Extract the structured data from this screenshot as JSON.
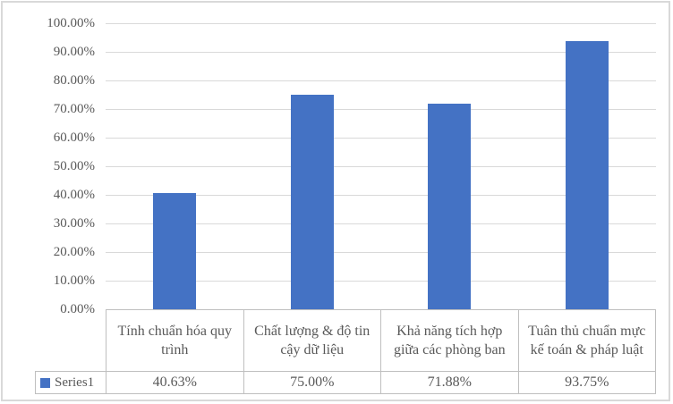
{
  "chart_data": {
    "type": "bar",
    "title": "",
    "xlabel": "",
    "ylabel": "",
    "categories": [
      "Tính chuẩn hóa quy trình",
      "Chất lượng & độ tin cậy dữ liệu",
      "Khả năng tích hợp giữa các phòng ban",
      "Tuân thủ chuẩn mực kế toán & pháp luật"
    ],
    "series": [
      {
        "name": "Series1",
        "values": [
          40.63,
          75.0,
          71.88,
          93.75
        ]
      }
    ],
    "value_labels": [
      "40.63%",
      "75.00%",
      "71.88%",
      "93.75%"
    ],
    "y_ticks": [
      "100.00%",
      "90.00%",
      "80.00%",
      "70.00%",
      "60.00%",
      "50.00%",
      "40.00%",
      "30.00%",
      "20.00%",
      "10.00%",
      "0.00%"
    ],
    "ylim": [
      0,
      100
    ],
    "grid": true,
    "legend_position": "data-table-left",
    "colors": {
      "bar": "#4472C4",
      "gridline": "#D9D9D9",
      "table_border": "#BFBFBF",
      "text": "#595959",
      "frame_border": "#D9D9D9"
    }
  }
}
